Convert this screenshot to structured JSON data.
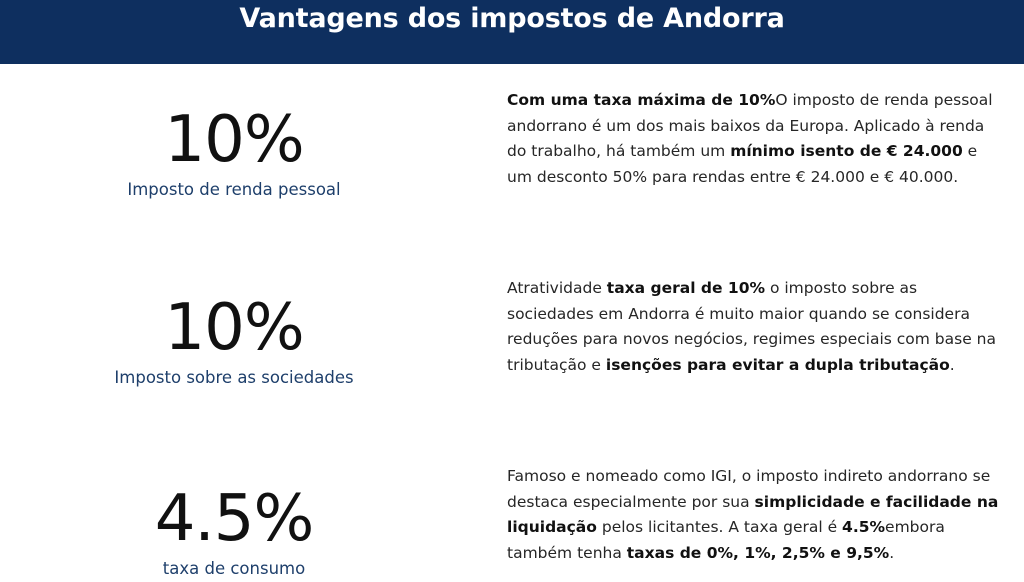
{
  "header": {
    "title": "Vantagens dos impostos de Andorra"
  },
  "rows": [
    {
      "value": "10%",
      "caption": "Imposto de renda pessoal",
      "segments": [
        {
          "text": "Com uma taxa máxima de 10%",
          "bold": true
        },
        {
          "text": "O imposto de renda pessoal andorrano é um dos mais baixos da Europa. Aplicado à renda do trabalho, há também um ",
          "bold": false
        },
        {
          "text": "mínimo isento de € 24.000",
          "bold": true
        },
        {
          "text": " e um desconto 50% para rendas entre € 24.000 e € 40.000.",
          "bold": false
        }
      ]
    },
    {
      "value": "10%",
      "caption": "Imposto sobre as sociedades",
      "segments": [
        {
          "text": "Atratividade ",
          "bold": false
        },
        {
          "text": "taxa geral de 10%",
          "bold": true
        },
        {
          "text": " o imposto sobre as sociedades em Andorra é muito maior quando se considera reduções para novos negócios, regimes especiais com base na tributação e ",
          "bold": false
        },
        {
          "text": "isenções para evitar a dupla tributação",
          "bold": true
        },
        {
          "text": ".",
          "bold": false
        }
      ]
    },
    {
      "value": "4.5%",
      "caption": "taxa de consumo",
      "segments": [
        {
          "text": "Famoso e nomeado como IGI, o imposto indireto andorrano se destaca especialmente por sua ",
          "bold": false
        },
        {
          "text": "simplicidade e facilidade na liquidação",
          "bold": true
        },
        {
          "text": " pelos licitantes. A taxa geral é ",
          "bold": false
        },
        {
          "text": "4.5%",
          "bold": true
        },
        {
          "text": "embora também tenha ",
          "bold": false
        },
        {
          "text": "taxas de 0%, 1%, 2,5% e 9,5%",
          "bold": true
        },
        {
          "text": ".",
          "bold": false
        }
      ]
    }
  ]
}
